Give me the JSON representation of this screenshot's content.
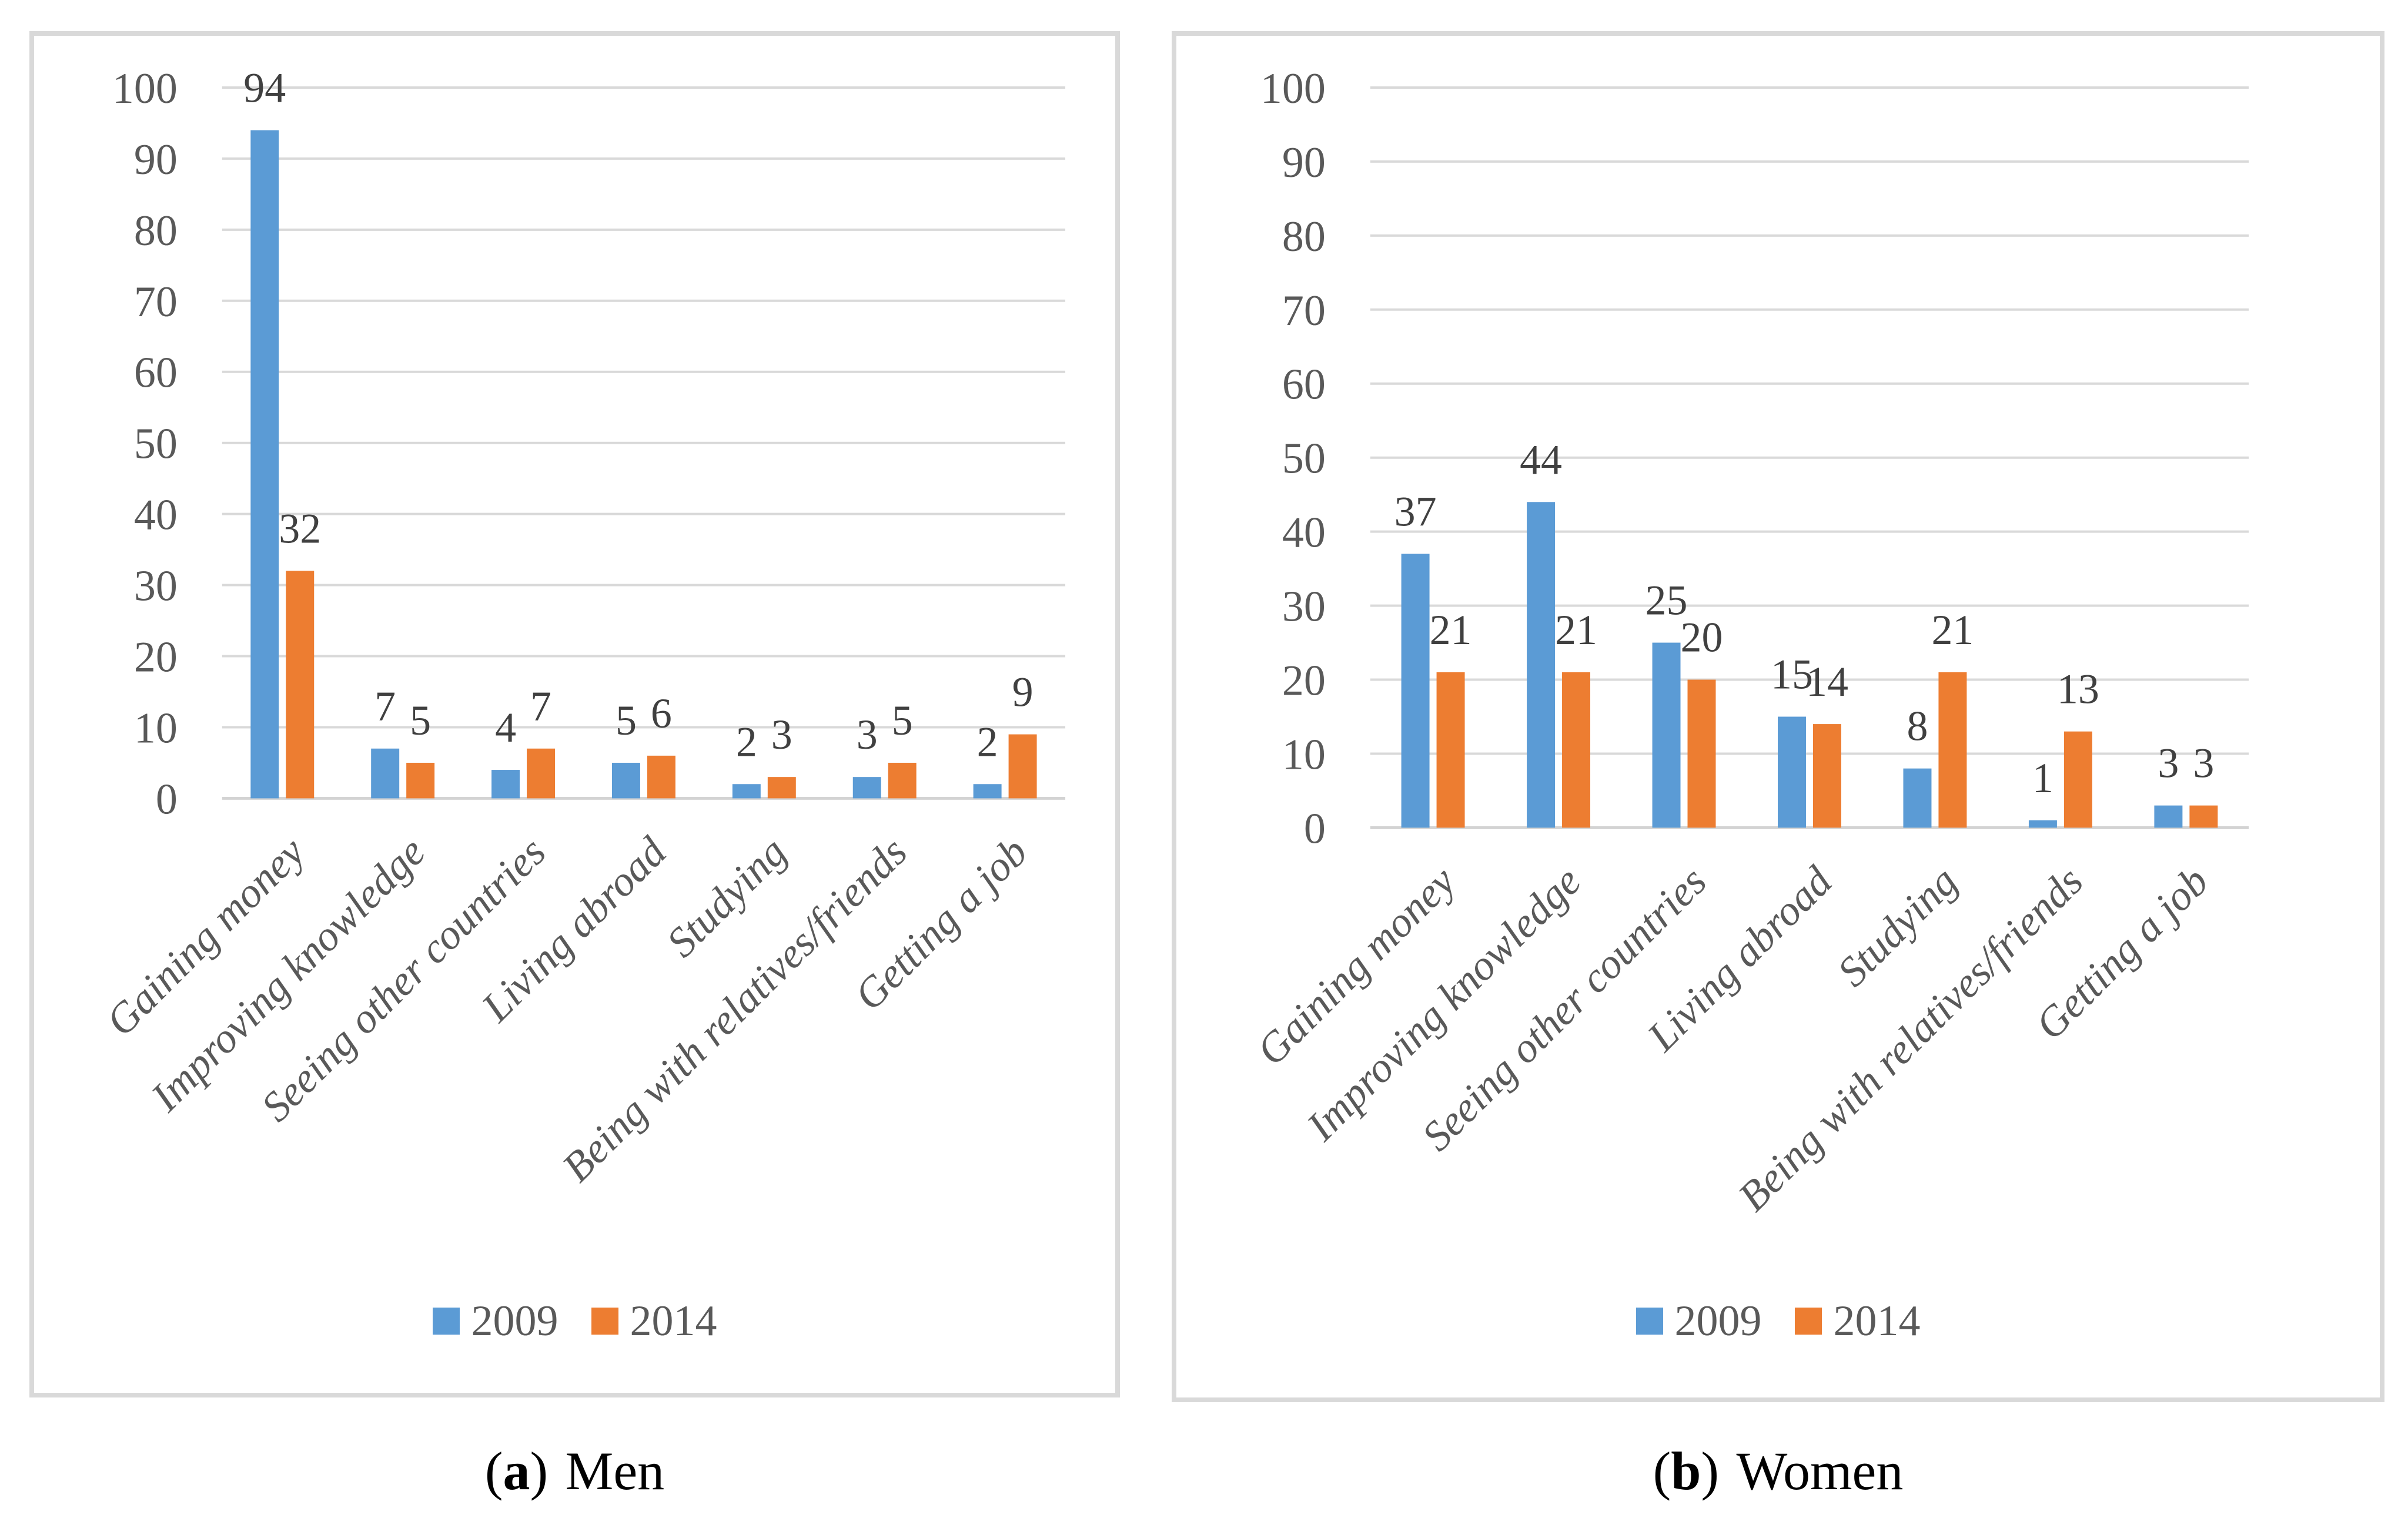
{
  "page": {
    "background": "#ffffff"
  },
  "colors": {
    "series_2009": "#5B9BD5",
    "series_2014": "#ED7D31",
    "gridline": "#D9D9D9",
    "axis_line": "#D3D3D3",
    "tick_label": "#595959",
    "data_label": "#404040",
    "category_label": "#595959",
    "legend_label": "#595959",
    "panel_border": "#D9D9D9",
    "caption_text": "#000000"
  },
  "chart_data": [
    {
      "id": "men",
      "type": "bar",
      "title": "",
      "categories": [
        "Gaining money",
        "Improving knowledge",
        "Seeing other countries",
        "Living abroad",
        "Studying",
        "Being with relatives/friends",
        "Getting a job"
      ],
      "series": [
        {
          "name": "2009",
          "color": "#5B9BD5",
          "values": [
            94,
            7,
            4,
            5,
            2,
            3,
            2
          ]
        },
        {
          "name": "2014",
          "color": "#ED7D31",
          "values": [
            32,
            5,
            7,
            6,
            3,
            5,
            9
          ]
        }
      ],
      "ylim": [
        0,
        100
      ],
      "yticks": [
        0,
        10,
        20,
        30,
        40,
        50,
        60,
        70,
        80,
        90,
        100
      ],
      "grid": true,
      "data_labels": true,
      "legend_position": "bottom",
      "category_label_rotation": 45,
      "caption": {
        "open": "(",
        "letter": "a",
        "close": ")",
        "text": "Men"
      }
    },
    {
      "id": "women",
      "type": "bar",
      "title": "",
      "categories": [
        "Gaining money",
        "Improving knowledge",
        "Seeing other countries",
        "Living abroad",
        "Studying",
        "Being with relatives/friends",
        "Getting a job"
      ],
      "series": [
        {
          "name": "2009",
          "color": "#5B9BD5",
          "values": [
            37,
            44,
            25,
            15,
            8,
            1,
            3
          ]
        },
        {
          "name": "2014",
          "color": "#ED7D31",
          "values": [
            21,
            21,
            20,
            14,
            21,
            13,
            3
          ]
        }
      ],
      "ylim": [
        0,
        100
      ],
      "yticks": [
        0,
        10,
        20,
        30,
        40,
        50,
        60,
        70,
        80,
        90,
        100
      ],
      "grid": true,
      "data_labels": true,
      "legend_position": "bottom",
      "category_label_rotation": 45,
      "caption": {
        "open": "(",
        "letter": "b",
        "close": ")",
        "text": "Women"
      }
    }
  ]
}
